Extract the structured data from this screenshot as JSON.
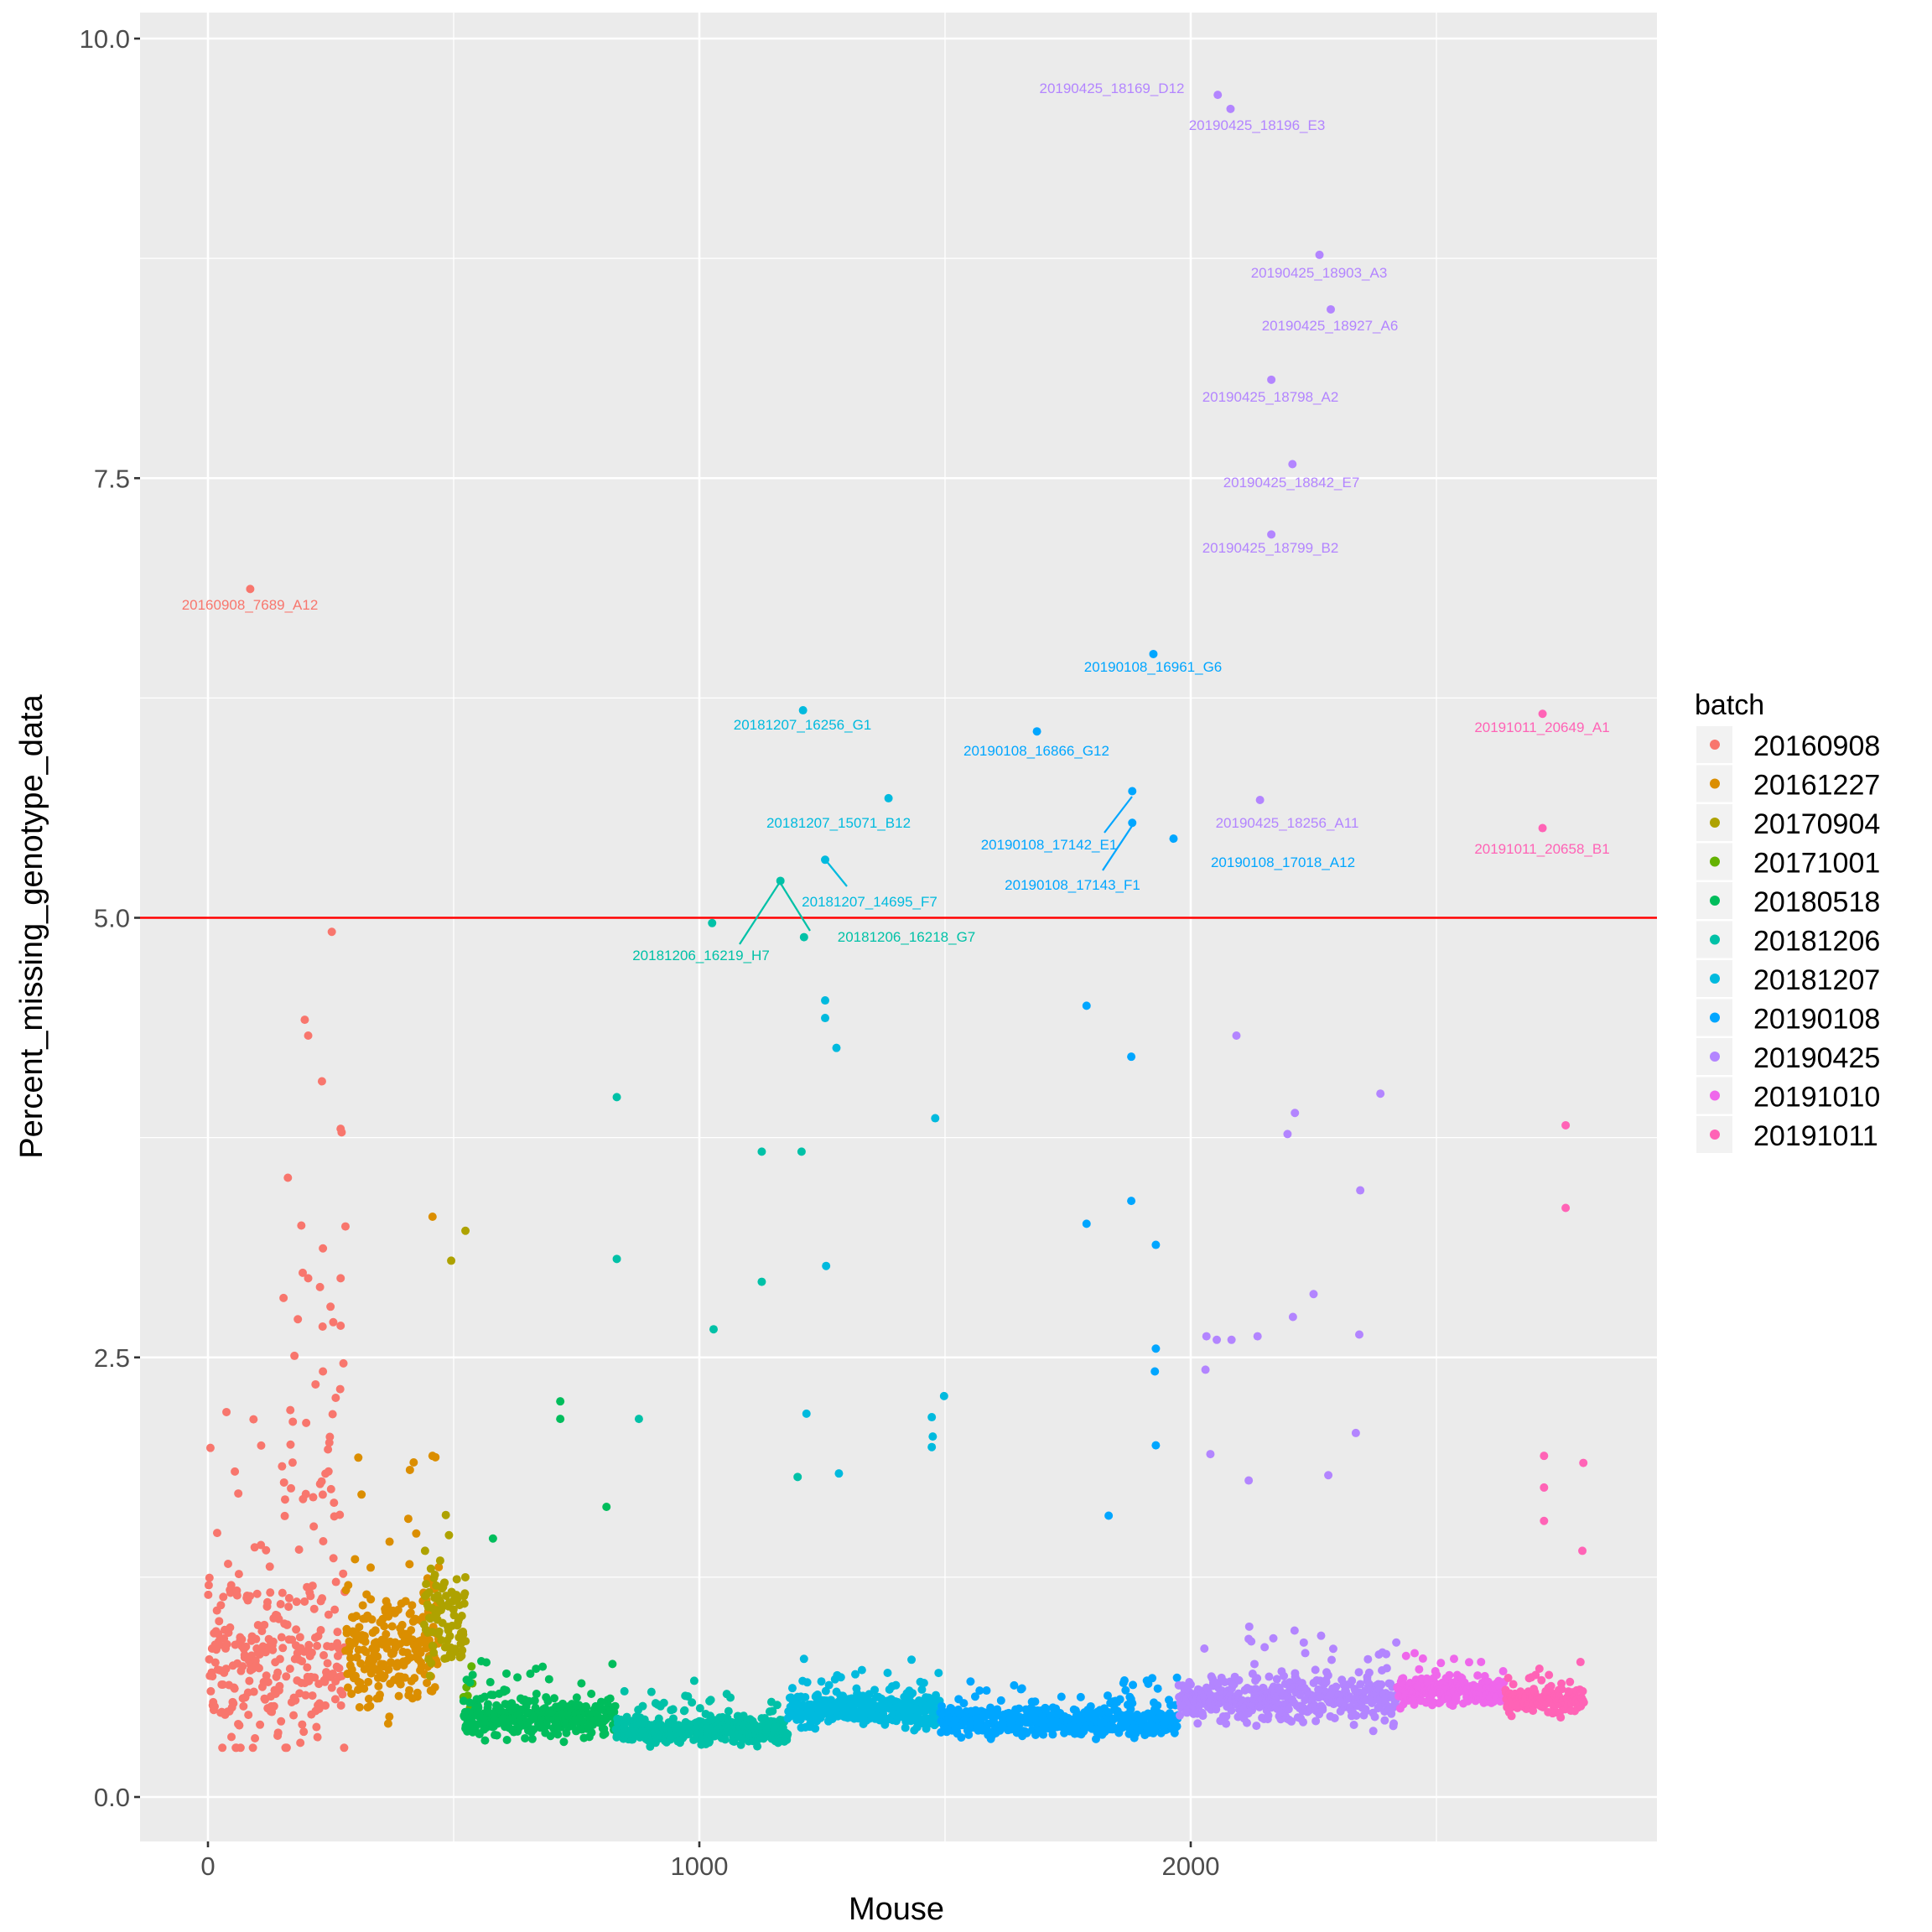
{
  "chart_data": {
    "type": "scatter",
    "xlabel": "Mouse",
    "ylabel": "Percent_missing_genotype_data",
    "xlim": [
      -130,
      2960
    ],
    "ylim": [
      -0.25,
      10.15
    ],
    "x_ticks": [
      0,
      1000,
      2000
    ],
    "x_tick_labels": [
      "0",
      "1000",
      "2000"
    ],
    "y_ticks": [
      0,
      2.5,
      5,
      7.5,
      10
    ],
    "y_tick_labels": [
      "0.0",
      "2.5",
      "5.0",
      "7.5",
      "10.0"
    ],
    "grid": true,
    "threshold_line": {
      "y": 5,
      "color": "#FF0000"
    },
    "legend": {
      "title": "batch",
      "placement": "right"
    },
    "batches": [
      {
        "name": "20160908",
        "color": "#F8766D",
        "x_range": [
          0,
          280
        ],
        "typical": 0.75,
        "spread": 0.55,
        "n": 300
      },
      {
        "name": "20161227",
        "color": "#DB8E00",
        "x_range": [
          280,
          470
        ],
        "typical": 0.8,
        "spread": 0.35,
        "n": 230
      },
      {
        "name": "20170904",
        "color": "#AEA200",
        "x_range": [
          440,
          525
        ],
        "typical": 1.0,
        "spread": 0.35,
        "n": 90
      },
      {
        "name": "20171001",
        "color": "#64B200",
        "x_range": [
          520,
          540
        ],
        "typical": 0.6,
        "spread": 0.2,
        "n": 6
      },
      {
        "name": "20180518",
        "color": "#00BD5C",
        "x_range": [
          520,
          830
        ],
        "typical": 0.45,
        "spread": 0.12,
        "n": 330
      },
      {
        "name": "20181206",
        "color": "#00C1A7",
        "x_range": [
          830,
          1180
        ],
        "typical": 0.38,
        "spread": 0.08,
        "n": 380
      },
      {
        "name": "20181207",
        "color": "#00BADE",
        "x_range": [
          1180,
          1490
        ],
        "typical": 0.5,
        "spread": 0.1,
        "n": 330
      },
      {
        "name": "20190108",
        "color": "#00A6FF",
        "x_range": [
          1490,
          1975
        ],
        "typical": 0.43,
        "spread": 0.09,
        "n": 480
      },
      {
        "name": "20190425",
        "color": "#B385FF",
        "x_range": [
          1975,
          2420
        ],
        "typical": 0.55,
        "spread": 0.14,
        "n": 440
      },
      {
        "name": "20191010",
        "color": "#EF67EB",
        "x_range": [
          2420,
          2640
        ],
        "typical": 0.6,
        "spread": 0.08,
        "n": 230
      },
      {
        "name": "20191011",
        "color": "#FF63B6",
        "x_range": [
          2640,
          2800
        ],
        "typical": 0.55,
        "spread": 0.08,
        "n": 170
      }
    ],
    "labeled_points": [
      {
        "label": "20190425_18169_D12",
        "batch": 8,
        "x": 2055,
        "y": 9.68
      },
      {
        "label": "20190425_18196_E3",
        "batch": 8,
        "x": 2081,
        "y": 9.6
      },
      {
        "label": "20190425_18903_A3",
        "batch": 8,
        "x": 2262,
        "y": 8.77
      },
      {
        "label": "20190425_18927_A6",
        "batch": 8,
        "x": 2285,
        "y": 8.46
      },
      {
        "label": "20190425_18798_A2",
        "batch": 8,
        "x": 2164,
        "y": 8.06
      },
      {
        "label": "20190425_18842_E7",
        "batch": 8,
        "x": 2207,
        "y": 7.58
      },
      {
        "label": "20190425_18799_B2",
        "batch": 8,
        "x": 2164,
        "y": 7.18
      },
      {
        "label": "20160908_7689_A12",
        "batch": 0,
        "x": 86,
        "y": 6.87
      },
      {
        "label": "20190108_16961_G6",
        "batch": 7,
        "x": 1924,
        "y": 6.5
      },
      {
        "label": "20181207_16256_G1",
        "batch": 6,
        "x": 1211,
        "y": 6.18
      },
      {
        "label": "20190108_16866_G12",
        "batch": 7,
        "x": 1687,
        "y": 6.06
      },
      {
        "label": "20191011_20649_A1",
        "batch": 10,
        "x": 2716,
        "y": 6.16
      },
      {
        "label": "20181207_15071_B12",
        "batch": 6,
        "x": 1385,
        "y": 5.68
      },
      {
        "label": "20190425_18256_A11",
        "batch": 8,
        "x": 2141,
        "y": 5.67
      },
      {
        "label": "20190108_17142_E1",
        "batch": 7,
        "x": 1881,
        "y": 5.72
      },
      {
        "label": "20190108_17143_F1",
        "batch": 7,
        "x": 1881,
        "y": 5.54
      },
      {
        "label": "20190108_17018_A12",
        "batch": 7,
        "x": 1965,
        "y": 5.45
      },
      {
        "label": "20191011_20658_B1",
        "batch": 10,
        "x": 2716,
        "y": 5.51
      },
      {
        "label": "20181207_14695_F7",
        "batch": 6,
        "x": 1256,
        "y": 5.33
      },
      {
        "label": "20181206_16219_H7",
        "batch": 5,
        "x": 1165,
        "y": 5.21
      },
      {
        "label": "20181206_16218_G7",
        "batch": 5,
        "x": 1213,
        "y": 4.89
      }
    ],
    "other_outliers": [
      [
        0,
        252,
        4.92
      ],
      [
        0,
        197,
        4.42
      ],
      [
        0,
        204,
        4.33
      ],
      [
        0,
        232,
        4.07
      ],
      [
        0,
        270,
        3.8
      ],
      [
        0,
        272,
        3.78
      ],
      [
        0,
        190,
        3.25
      ],
      [
        0,
        234,
        3.12
      ],
      [
        0,
        204,
        2.95
      ],
      [
        0,
        270,
        2.95
      ],
      [
        0,
        228,
        2.9
      ],
      [
        0,
        255,
        2.7
      ],
      [
        0,
        270,
        2.68
      ],
      [
        0,
        234,
        2.42
      ],
      [
        0,
        260,
        2.27
      ],
      [
        1,
        457,
        3.3
      ],
      [
        1,
        306,
        1.93
      ],
      [
        1,
        457,
        1.94
      ],
      [
        1,
        411,
        1.86
      ],
      [
        2,
        524,
        3.22
      ],
      [
        2,
        495,
        3.05
      ],
      [
        4,
        717,
        2.25
      ],
      [
        4,
        717,
        2.15
      ],
      [
        4,
        811,
        1.65
      ],
      [
        4,
        580,
        1.47
      ],
      [
        5,
        832,
        3.98
      ],
      [
        5,
        832,
        3.06
      ],
      [
        5,
        877,
        2.15
      ],
      [
        5,
        1127,
        3.67
      ],
      [
        5,
        1127,
        2.93
      ],
      [
        5,
        1029,
        2.66
      ],
      [
        5,
        1026,
        4.97
      ],
      [
        5,
        1208,
        3.67
      ],
      [
        5,
        1200,
        1.82
      ],
      [
        6,
        1256,
        4.53
      ],
      [
        6,
        1256,
        4.43
      ],
      [
        6,
        1279,
        4.26
      ],
      [
        6,
        1258,
        3.02
      ],
      [
        6,
        1480,
        3.86
      ],
      [
        6,
        1218,
        2.18
      ],
      [
        6,
        1498,
        2.28
      ],
      [
        6,
        1475,
        2.05
      ],
      [
        6,
        1473,
        2.16
      ],
      [
        6,
        1473,
        1.99
      ],
      [
        6,
        1284,
        1.84
      ],
      [
        7,
        1788,
        4.5
      ],
      [
        7,
        1879,
        4.21
      ],
      [
        7,
        1788,
        3.26
      ],
      [
        7,
        1879,
        3.39
      ],
      [
        7,
        1929,
        3.14
      ],
      [
        7,
        1929,
        2.55
      ],
      [
        7,
        1927,
        2.42
      ],
      [
        7,
        1929,
        2.0
      ],
      [
        7,
        1833,
        1.6
      ],
      [
        8,
        2093,
        4.33
      ],
      [
        8,
        2212,
        3.89
      ],
      [
        8,
        2197,
        3.77
      ],
      [
        8,
        2386,
        4.0
      ],
      [
        8,
        2345,
        3.45
      ],
      [
        8,
        2250,
        2.86
      ],
      [
        8,
        2343,
        2.63
      ],
      [
        8,
        2336,
        2.07
      ],
      [
        8,
        2032,
        2.62
      ],
      [
        8,
        2053,
        2.6
      ],
      [
        8,
        2083,
        2.6
      ],
      [
        8,
        2136,
        2.62
      ],
      [
        8,
        2208,
        2.73
      ],
      [
        8,
        2030,
        2.43
      ],
      [
        8,
        2040,
        1.95
      ],
      [
        8,
        2118,
        1.8
      ],
      [
        8,
        2280,
        1.83
      ],
      [
        10,
        2763,
        3.82
      ],
      [
        10,
        2763,
        3.35
      ],
      [
        10,
        2719,
        1.94
      ],
      [
        10,
        2799,
        1.9
      ],
      [
        10,
        2719,
        1.76
      ],
      [
        10,
        2719,
        1.57
      ],
      [
        10,
        2797,
        1.4
      ]
    ]
  }
}
